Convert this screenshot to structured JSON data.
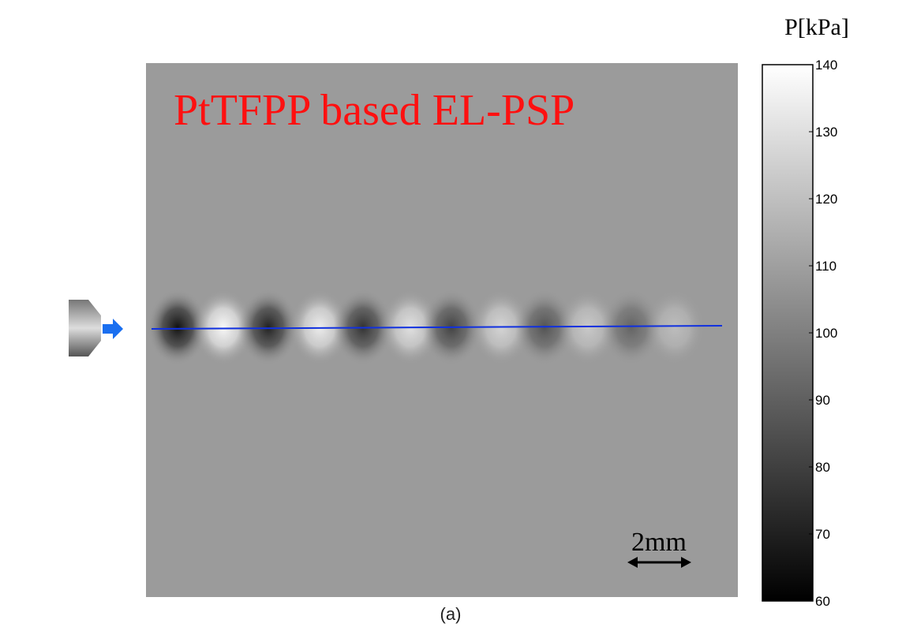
{
  "figure": {
    "title": "PtTFPP based EL-PSP",
    "scale_label": "2mm",
    "caption": "(a)",
    "colorbar": {
      "label": "P[kPa]",
      "lim": [
        60,
        140
      ],
      "ticks": [
        60,
        70,
        80,
        90,
        100,
        110,
        120,
        130,
        140
      ]
    }
  }
}
